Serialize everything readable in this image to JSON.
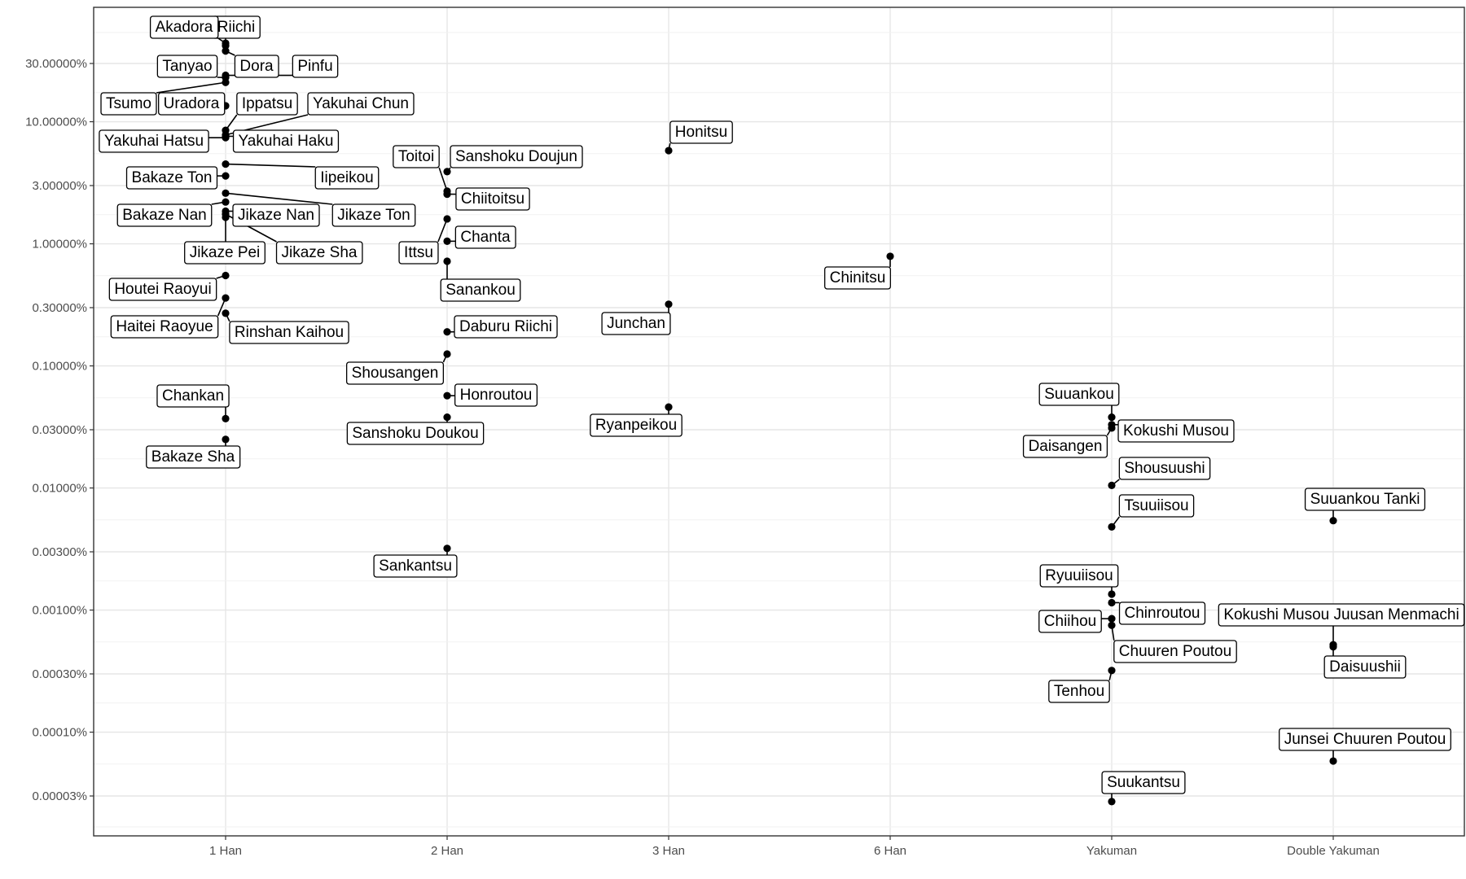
{
  "chart_data": {
    "type": "scatter",
    "title": "",
    "xlabel": "",
    "ylabel": "",
    "y_scale": "log",
    "grid": true,
    "categories": [
      "1 Han",
      "2 Han",
      "3 Han",
      "6 Han",
      "Yakuman",
      "Double Yakuman"
    ],
    "y_ticks": [
      30,
      10,
      3,
      1,
      0.3,
      0.1,
      0.03,
      0.01,
      0.003,
      0.001,
      0.0003,
      0.0001,
      3e-05
    ],
    "y_tick_labels": [
      "30.00000%",
      "10.00000%",
      "3.00000%",
      "1.00000%",
      "0.30000%",
      "0.10000%",
      "0.03000%",
      "0.01000%",
      "0.00300%",
      "0.00100%",
      "0.00030%",
      "0.00010%",
      "0.00003%"
    ],
    "ylim": [
      2e-05,
      80
    ],
    "points": [
      {
        "name": "Riichi",
        "x": "1 Han",
        "y": 42
      },
      {
        "name": "Akadora",
        "x": "1 Han",
        "y": 44
      },
      {
        "name": "Dora",
        "x": "1 Han",
        "y": 38
      },
      {
        "name": "Pinfu",
        "x": "1 Han",
        "y": 24
      },
      {
        "name": "Tanyao",
        "x": "1 Han",
        "y": 23
      },
      {
        "name": "Tsumo",
        "x": "1 Han",
        "y": 21
      },
      {
        "name": "Uradora",
        "x": "1 Han",
        "y": 13.5
      },
      {
        "name": "Ippatsu",
        "x": "1 Han",
        "y": 8.5
      },
      {
        "name": "Yakuhai Chun",
        "x": "1 Han",
        "y": 7.8
      },
      {
        "name": "Yakuhai Haku",
        "x": "1 Han",
        "y": 7.6
      },
      {
        "name": "Yakuhai Hatsu",
        "x": "1 Han",
        "y": 7.4
      },
      {
        "name": "Iipeikou",
        "x": "1 Han",
        "y": 4.5
      },
      {
        "name": "Bakaze Ton",
        "x": "1 Han",
        "y": 3.6
      },
      {
        "name": "Jikaze Ton",
        "x": "1 Han",
        "y": 2.6
      },
      {
        "name": "Bakaze Nan",
        "x": "1 Han",
        "y": 2.2
      },
      {
        "name": "Jikaze Nan",
        "x": "1 Han",
        "y": 1.85
      },
      {
        "name": "Jikaze Sha",
        "x": "1 Han",
        "y": 1.75
      },
      {
        "name": "Jikaze Pei",
        "x": "1 Han",
        "y": 1.65
      },
      {
        "name": "Houtei Raoyui",
        "x": "1 Han",
        "y": 0.55
      },
      {
        "name": "Haitei Raoyue",
        "x": "1 Han",
        "y": 0.36
      },
      {
        "name": "Rinshan Kaihou",
        "x": "1 Han",
        "y": 0.27
      },
      {
        "name": "Chankan",
        "x": "1 Han",
        "y": 0.037
      },
      {
        "name": "Bakaze Sha",
        "x": "1 Han",
        "y": 0.025
      },
      {
        "name": "Sanshoku Doujun",
        "x": "2 Han",
        "y": 3.9
      },
      {
        "name": "Toitoi",
        "x": "2 Han",
        "y": 2.7
      },
      {
        "name": "Chiitoitsu",
        "x": "2 Han",
        "y": 2.55
      },
      {
        "name": "Ittsu",
        "x": "2 Han",
        "y": 1.6
      },
      {
        "name": "Chanta",
        "x": "2 Han",
        "y": 1.05
      },
      {
        "name": "Sanankou",
        "x": "2 Han",
        "y": 0.72
      },
      {
        "name": "Daburu Riichi",
        "x": "2 Han",
        "y": 0.19
      },
      {
        "name": "Shousangen",
        "x": "2 Han",
        "y": 0.125
      },
      {
        "name": "Honroutou",
        "x": "2 Han",
        "y": 0.057
      },
      {
        "name": "Sanshoku Doukou",
        "x": "2 Han",
        "y": 0.038
      },
      {
        "name": "Sankantsu",
        "x": "2 Han",
        "y": 0.0032
      },
      {
        "name": "Honitsu",
        "x": "3 Han",
        "y": 5.8
      },
      {
        "name": "Junchan",
        "x": "3 Han",
        "y": 0.32
      },
      {
        "name": "Ryanpeikou",
        "x": "3 Han",
        "y": 0.046
      },
      {
        "name": "Chinitsu",
        "x": "6 Han",
        "y": 0.79
      },
      {
        "name": "Suuankou",
        "x": "Yakuman",
        "y": 0.038
      },
      {
        "name": "Kokushi Musou",
        "x": "Yakuman",
        "y": 0.033
      },
      {
        "name": "Daisangen",
        "x": "Yakuman",
        "y": 0.031
      },
      {
        "name": "Shousuushi",
        "x": "Yakuman",
        "y": 0.0105
      },
      {
        "name": "Tsuuiisou",
        "x": "Yakuman",
        "y": 0.0048
      },
      {
        "name": "Ryuuiisou",
        "x": "Yakuman",
        "y": 0.00135
      },
      {
        "name": "Chinroutou",
        "x": "Yakuman",
        "y": 0.00115
      },
      {
        "name": "Chiihou",
        "x": "Yakuman",
        "y": 0.00085
      },
      {
        "name": "Chuuren Poutou",
        "x": "Yakuman",
        "y": 0.00075
      },
      {
        "name": "Tenhou",
        "x": "Yakuman",
        "y": 0.00032
      },
      {
        "name": "Suukantsu",
        "x": "Yakuman",
        "y": 2.7e-05
      },
      {
        "name": "Suuankou Tanki",
        "x": "Double Yakuman",
        "y": 0.0054
      },
      {
        "name": "Kokushi Musou Juusan Menmachi",
        "x": "Double Yakuman",
        "y": 0.00052
      },
      {
        "name": "Daisuushii",
        "x": "Double Yakuman",
        "y": 0.0005
      },
      {
        "name": "Junsei Chuuren Poutou",
        "x": "Double Yakuman",
        "y": 5.8e-05
      }
    ]
  }
}
